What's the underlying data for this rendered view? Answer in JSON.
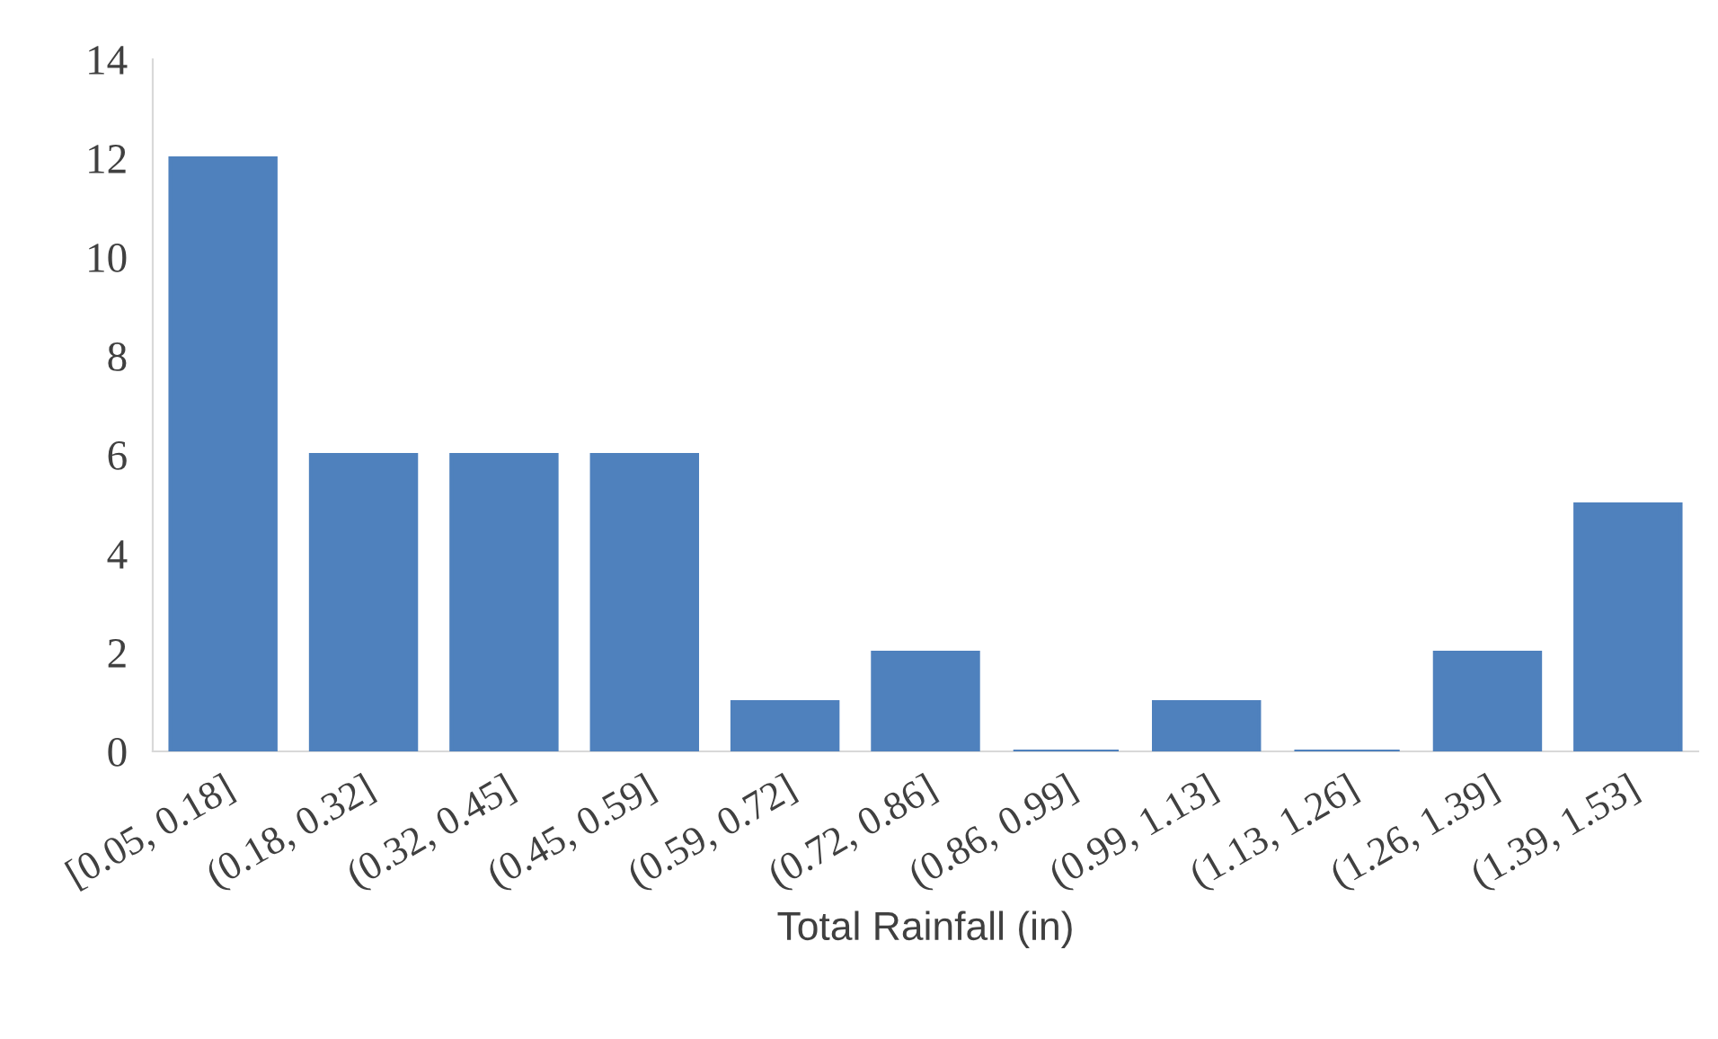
{
  "chart_data": {
    "type": "bar",
    "xlabel": "Total Rainfall (in)",
    "categories": [
      "[0.05, 0.18]",
      "(0.18, 0.32]",
      "(0.32, 0.45]",
      "(0.45, 0.59]",
      "(0.59, 0.72]",
      "(0.72, 0.86]",
      "(0.86, 0.99]",
      "(0.99, 1.13]",
      "(1.13, 1.26]",
      "(1.26, 1.39]",
      "(1.39, 1.53]"
    ],
    "values": [
      12,
      6,
      6,
      6,
      1,
      2,
      0,
      1,
      0,
      2,
      5
    ],
    "color": "#4f81bd",
    "ylim": [
      0,
      14
    ],
    "yticks": [
      0,
      2,
      4,
      6,
      8,
      10,
      12,
      14
    ],
    "grid": false,
    "legend": false
  }
}
